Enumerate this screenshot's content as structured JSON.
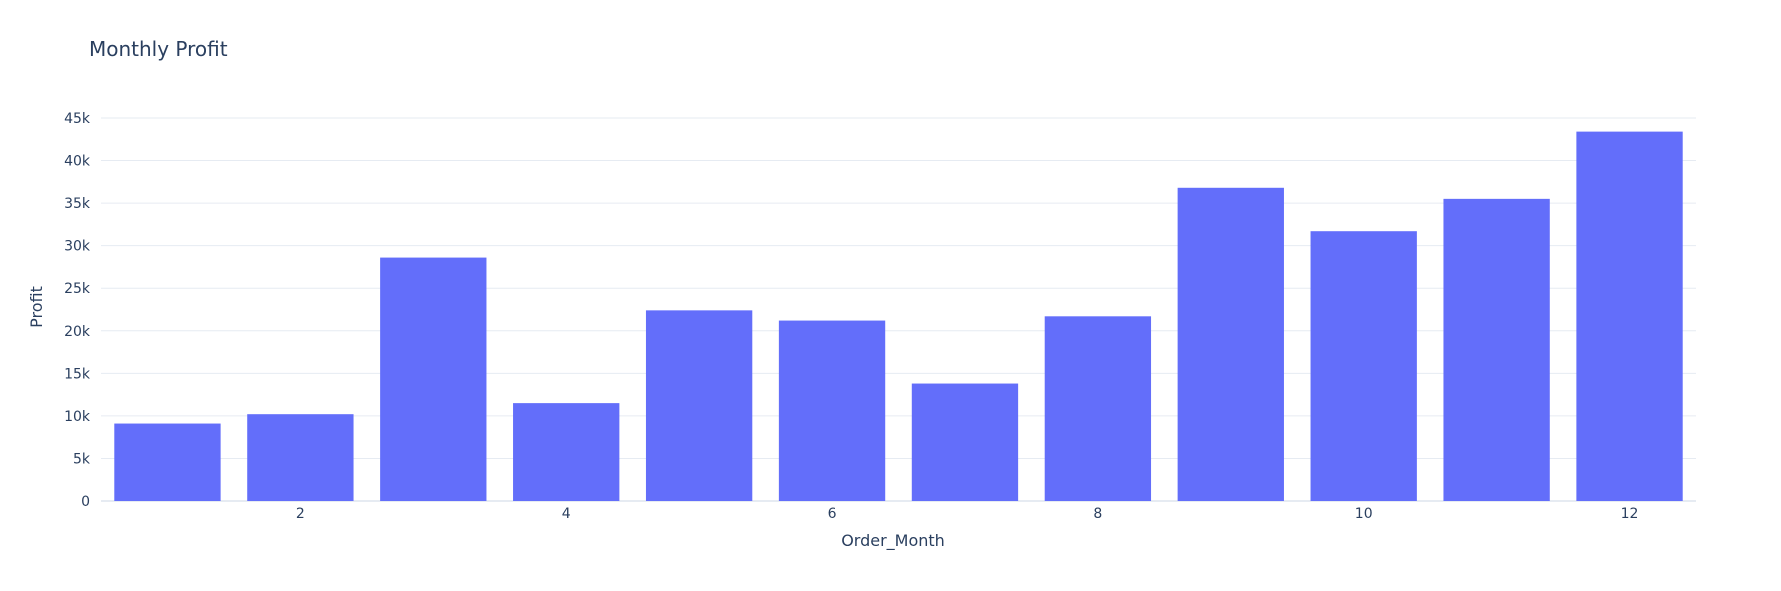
{
  "chart_data": {
    "type": "bar",
    "title": "Monthly Profit",
    "xlabel": "Order_Month",
    "ylabel": "Profit",
    "x": [
      1,
      2,
      3,
      4,
      5,
      6,
      7,
      8,
      9,
      10,
      11,
      12
    ],
    "values": [
      9100,
      10200,
      28600,
      11500,
      22400,
      21200,
      13800,
      21700,
      36800,
      31700,
      35500,
      43400
    ],
    "xlim": [
      0.5,
      12.5
    ],
    "ylim": [
      0,
      45000
    ],
    "x_ticks": [
      2,
      4,
      6,
      8,
      10,
      12
    ],
    "x_tick_labels": [
      "2",
      "4",
      "6",
      "8",
      "10",
      "12"
    ],
    "y_ticks": [
      0,
      5000,
      10000,
      15000,
      20000,
      25000,
      30000,
      35000,
      40000,
      45000
    ],
    "y_tick_labels": [
      "0",
      "5k",
      "10k",
      "15k",
      "20k",
      "25k",
      "30k",
      "35k",
      "40k",
      "45k"
    ],
    "bar_color": "#636efa",
    "grid": true,
    "legend": false
  }
}
